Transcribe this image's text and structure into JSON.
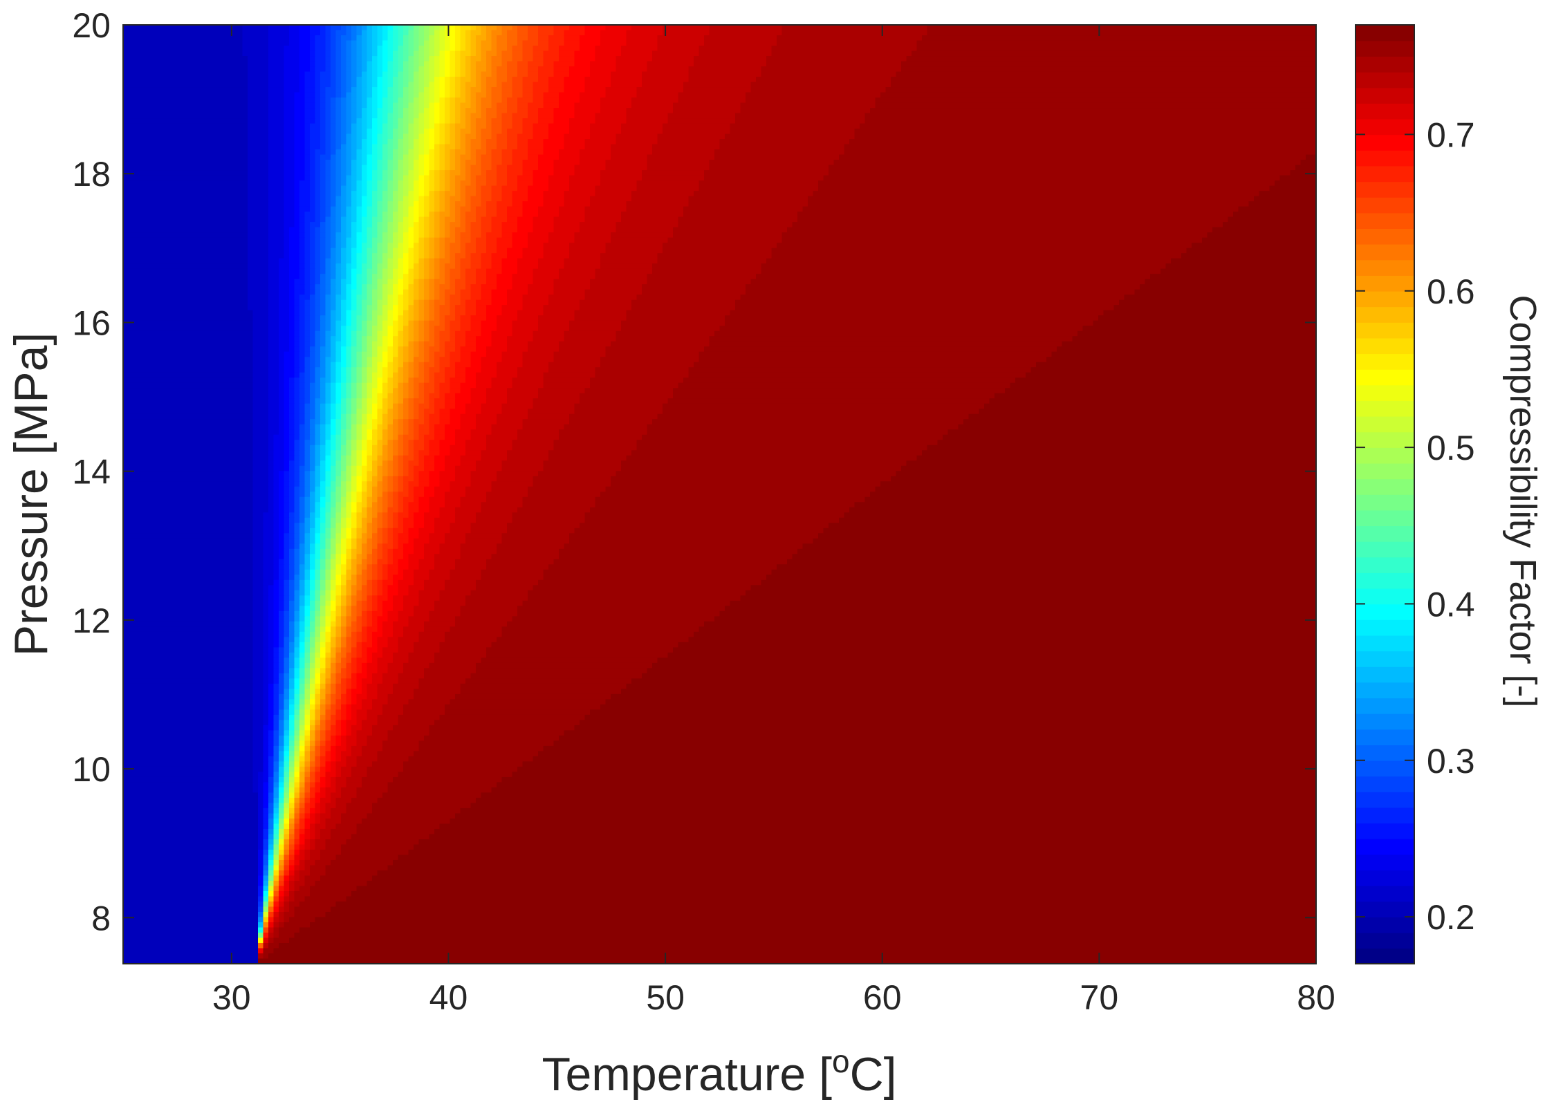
{
  "chart_data": {
    "type": "heatmap",
    "subtype": "filled-contour",
    "colormap": "jet",
    "title": "",
    "xlabel": {
      "text": "Temperature [",
      "sup": "o",
      "suffix": "C]"
    },
    "ylabel": "Pressure [MPa]",
    "colorbar_label": "Compressibility Factor [-]",
    "xlim": [
      25,
      80
    ],
    "ylim": [
      7.38,
      20
    ],
    "clim": [
      0.17,
      0.77
    ],
    "x_ticks": [
      30,
      40,
      50,
      60,
      70,
      80
    ],
    "y_ticks": [
      8,
      10,
      12,
      14,
      16,
      18,
      20
    ],
    "colorbar_ticks": [
      0.2,
      0.3,
      0.4,
      0.5,
      0.6,
      0.7
    ],
    "critical_point": {
      "temperature": 31.1,
      "pressure": 7.38
    },
    "grid": false
  }
}
